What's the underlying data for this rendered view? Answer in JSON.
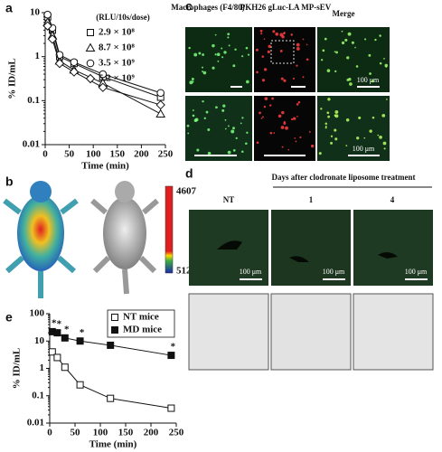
{
  "panel_labels": [
    "a",
    "b",
    "c",
    "d",
    "e"
  ],
  "panel_b": {
    "colorbar_max": "4607",
    "colorbar_min": "512"
  },
  "panel_c": {
    "headers": [
      "Macrophages (F4/80)",
      "PKH26 gLuc-LA MP-sEV",
      "Merge"
    ],
    "scale_labels": [
      "100 μm",
      "100 μm"
    ]
  },
  "panel_d": {
    "title": "Days after clodronate liposome treatment",
    "columns": [
      "NT",
      "1",
      "4"
    ],
    "scale_labels": [
      "100 μm",
      "100 μm",
      "100 μm"
    ]
  },
  "chart_data": [
    {
      "type": "line",
      "xlabel": "Time (min)",
      "ylabel": "% ID/mL",
      "legend_title": "(RLU/10s/dose)",
      "x": [
        5,
        15,
        30,
        60,
        120,
        240
      ],
      "series": [
        {
          "name": "2.9 × 10⁸",
          "marker": "square",
          "color": "#ffffff",
          "values": [
            8,
            4,
            1.0,
            0.7,
            0.35,
            0.12
          ]
        },
        {
          "name": "8.7 × 10⁸",
          "marker": "triangle",
          "color": "#ffffff",
          "values": [
            6,
            3,
            0.8,
            0.5,
            0.25,
            0.05
          ]
        },
        {
          "name": "3.5 × 10⁹",
          "marker": "circle",
          "color": "#ffffff",
          "values": [
            9,
            4.5,
            1.1,
            0.75,
            0.4,
            0.15
          ]
        },
        {
          "name": "5.2 × 10⁹",
          "marker": "diamond",
          "color": "#ffffff",
          "values": [
            5,
            2.5,
            0.7,
            0.45,
            0.2,
            0.08
          ]
        }
      ],
      "xlim": [
        0,
        250
      ],
      "xticks": [
        0,
        50,
        100,
        150,
        200,
        250
      ],
      "ylim": [
        0.01,
        10
      ],
      "yticks": [
        0.01,
        0.1,
        1,
        10
      ],
      "log_y": true
    },
    {
      "type": "line",
      "xlabel": "Time (min)",
      "ylabel": "% ID/mL",
      "annotation": "*",
      "x": [
        5,
        15,
        30,
        60,
        120,
        240
      ],
      "series": [
        {
          "name": "NT mice",
          "marker": "square",
          "color": "#ffffff",
          "values": [
            4,
            2.5,
            1.1,
            0.25,
            0.08,
            0.035
          ]
        },
        {
          "name": "MD mice",
          "marker": "square",
          "color": "#111111",
          "values": [
            22,
            20,
            13,
            10,
            7,
            3
          ],
          "annotated": true
        }
      ],
      "xlim": [
        0,
        250
      ],
      "xticks": [
        0,
        50,
        100,
        150,
        200,
        250
      ],
      "ylim": [
        0.01,
        100
      ],
      "yticks": [
        0.01,
        0.1,
        1,
        10,
        100
      ],
      "log_y": true
    }
  ]
}
